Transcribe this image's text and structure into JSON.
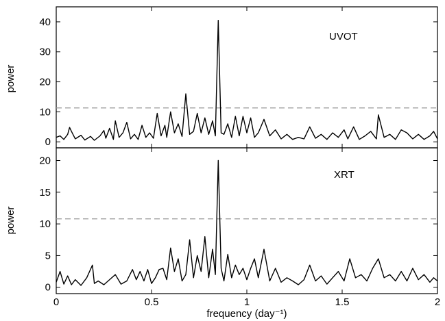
{
  "chart_data": [
    {
      "type": "line",
      "panel_label": "UVOT",
      "xlabel": "frequency (day⁻¹)",
      "ylabel": "power",
      "xlim": [
        0,
        2
      ],
      "ylim": [
        -2,
        45
      ],
      "yticks": [
        0,
        10,
        20,
        30,
        40
      ],
      "xticks": [
        0,
        0.5,
        1,
        1.5,
        2
      ],
      "xtick_labels": [
        "0",
        "0.5",
        "1",
        "1.5",
        "2"
      ],
      "threshold": 11.3,
      "grid": false,
      "series": [
        {
          "x": [
            0.0,
            0.02,
            0.04,
            0.06,
            0.07,
            0.08,
            0.1,
            0.13,
            0.15,
            0.18,
            0.2,
            0.23,
            0.25,
            0.26,
            0.28,
            0.3,
            0.31,
            0.33,
            0.35,
            0.37,
            0.39,
            0.41,
            0.43,
            0.45,
            0.47,
            0.49,
            0.51,
            0.53,
            0.55,
            0.57,
            0.58,
            0.6,
            0.62,
            0.64,
            0.66,
            0.68,
            0.7,
            0.72,
            0.74,
            0.76,
            0.78,
            0.8,
            0.82,
            0.835,
            0.85,
            0.865,
            0.88,
            0.9,
            0.92,
            0.94,
            0.96,
            0.98,
            1.0,
            1.02,
            1.04,
            1.06,
            1.09,
            1.12,
            1.15,
            1.18,
            1.21,
            1.24,
            1.27,
            1.3,
            1.33,
            1.36,
            1.39,
            1.42,
            1.45,
            1.48,
            1.51,
            1.53,
            1.56,
            1.59,
            1.62,
            1.65,
            1.68,
            1.69,
            1.72,
            1.75,
            1.78,
            1.81,
            1.84,
            1.87,
            1.9,
            1.93,
            1.96,
            1.98,
            2.0
          ],
          "y": [
            1.5,
            2.0,
            0.8,
            2.5,
            4.8,
            3.5,
            1.0,
            2.2,
            0.6,
            1.8,
            0.5,
            2.0,
            3.8,
            1.2,
            4.5,
            0.8,
            7.0,
            1.5,
            3.0,
            6.5,
            1.0,
            2.5,
            0.8,
            5.5,
            1.5,
            3.0,
            1.2,
            9.5,
            2.0,
            5.5,
            1.5,
            10.0,
            3.0,
            6.0,
            1.8,
            16.0,
            2.5,
            3.5,
            9.5,
            3.0,
            8.0,
            2.5,
            7.0,
            2.0,
            40.5,
            3.0,
            2.5,
            6.0,
            1.5,
            8.5,
            2.0,
            8.5,
            3.0,
            8.0,
            1.5,
            3.0,
            7.5,
            2.0,
            4.0,
            1.0,
            2.5,
            0.8,
            1.5,
            1.0,
            5.0,
            1.2,
            2.5,
            0.8,
            3.0,
            1.5,
            4.0,
            1.0,
            5.0,
            0.8,
            2.0,
            3.5,
            1.0,
            9.0,
            1.5,
            2.5,
            0.8,
            4.0,
            3.0,
            1.0,
            2.5,
            0.8,
            2.0,
            3.5,
            1.0
          ]
        }
      ]
    },
    {
      "type": "line",
      "panel_label": "XRT",
      "xlabel": "frequency (day⁻¹)",
      "ylabel": "power",
      "xlim": [
        0,
        2
      ],
      "ylim": [
        -1,
        22
      ],
      "yticks": [
        0,
        5,
        10,
        15,
        20
      ],
      "xticks": [
        0,
        0.5,
        1,
        1.5,
        2
      ],
      "xtick_labels": [
        "0",
        "0.5",
        "1",
        "1.5",
        "2"
      ],
      "threshold": 10.8,
      "grid": false,
      "series": [
        {
          "x": [
            0.0,
            0.02,
            0.04,
            0.06,
            0.08,
            0.1,
            0.13,
            0.16,
            0.19,
            0.2,
            0.22,
            0.25,
            0.28,
            0.31,
            0.34,
            0.37,
            0.4,
            0.42,
            0.44,
            0.46,
            0.48,
            0.5,
            0.52,
            0.54,
            0.56,
            0.58,
            0.6,
            0.62,
            0.64,
            0.66,
            0.68,
            0.7,
            0.72,
            0.74,
            0.76,
            0.78,
            0.8,
            0.82,
            0.835,
            0.85,
            0.865,
            0.88,
            0.9,
            0.92,
            0.94,
            0.96,
            0.98,
            1.0,
            1.02,
            1.04,
            1.06,
            1.09,
            1.12,
            1.15,
            1.18,
            1.21,
            1.24,
            1.27,
            1.3,
            1.33,
            1.36,
            1.39,
            1.42,
            1.45,
            1.48,
            1.51,
            1.54,
            1.57,
            1.6,
            1.63,
            1.66,
            1.69,
            1.72,
            1.75,
            1.78,
            1.81,
            1.84,
            1.87,
            1.9,
            1.93,
            1.96,
            1.98,
            2.0
          ],
          "y": [
            0.8,
            2.5,
            0.5,
            1.8,
            0.4,
            1.2,
            0.3,
            1.5,
            3.5,
            0.6,
            1.0,
            0.4,
            1.2,
            2.0,
            0.5,
            1.0,
            2.8,
            1.2,
            2.5,
            1.0,
            2.8,
            0.6,
            1.5,
            2.8,
            3.0,
            1.2,
            6.2,
            2.5,
            4.5,
            1.0,
            2.0,
            7.5,
            1.5,
            5.0,
            2.5,
            8.0,
            1.5,
            6.0,
            2.0,
            20.0,
            3.0,
            1.0,
            5.2,
            1.5,
            3.5,
            2.0,
            3.0,
            1.2,
            3.0,
            4.5,
            1.5,
            6.0,
            1.0,
            3.0,
            0.8,
            1.5,
            1.0,
            0.4,
            1.2,
            3.5,
            1.0,
            1.8,
            0.5,
            1.5,
            2.5,
            1.0,
            4.5,
            1.5,
            2.0,
            1.0,
            3.0,
            4.5,
            1.5,
            2.0,
            1.0,
            2.5,
            1.0,
            3.0,
            1.2,
            2.0,
            0.8,
            1.5,
            1.0
          ]
        }
      ]
    }
  ]
}
